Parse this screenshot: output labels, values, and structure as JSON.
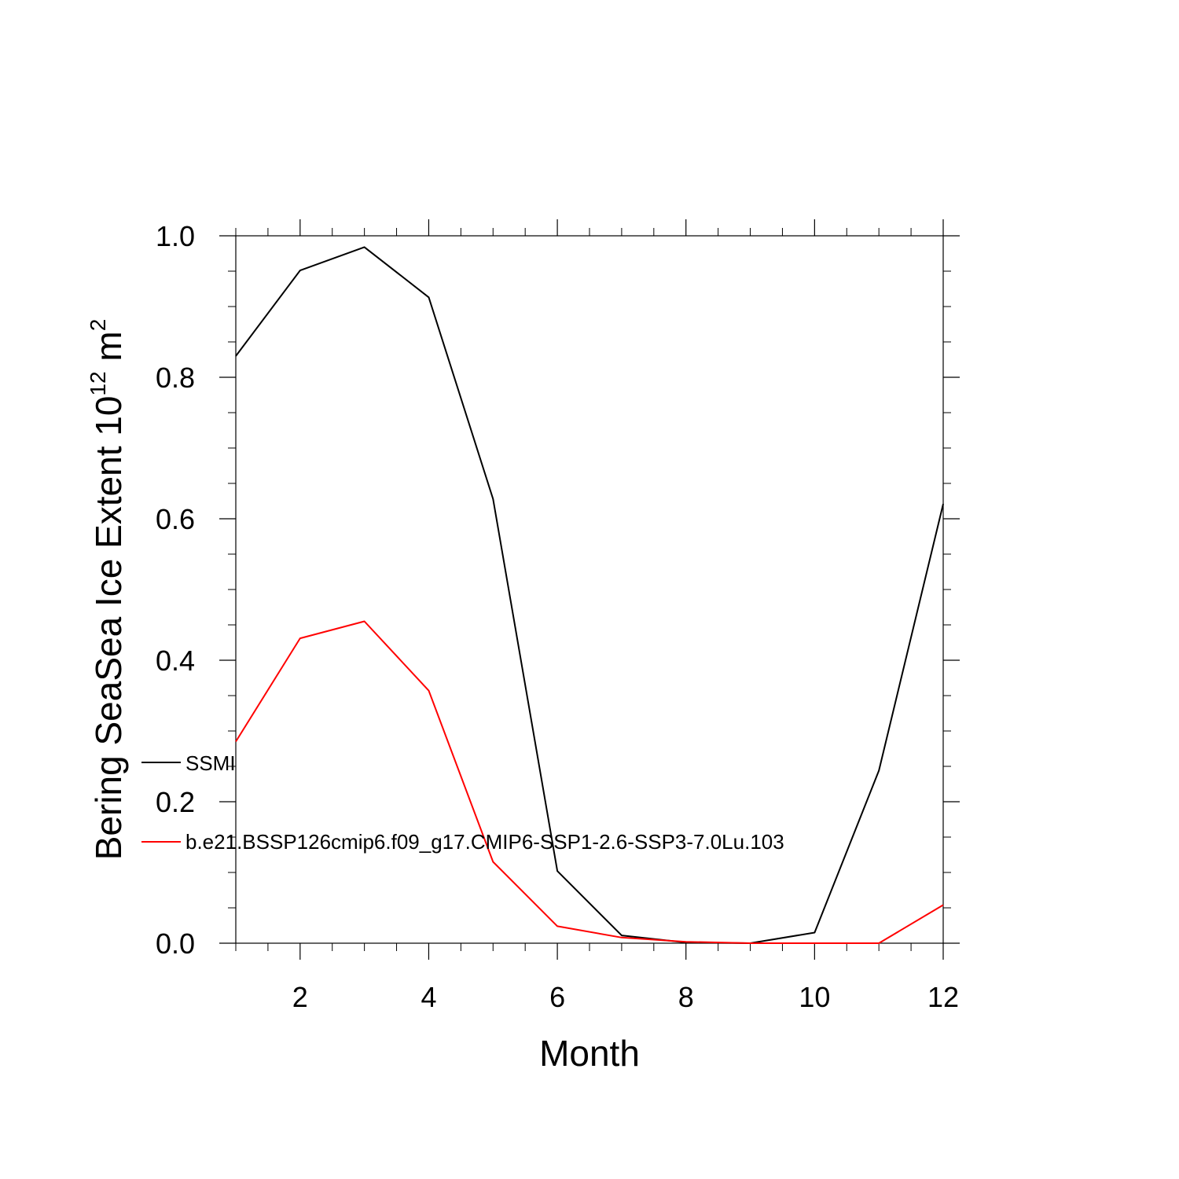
{
  "chart_data": {
    "type": "line",
    "title": "",
    "xlabel": "Month",
    "ylabel_main": "Bering SeaSea Ice Extent 10",
    "ylabel_exp": "12",
    "ylabel_unit": " m",
    "ylabel_unit_exp": "2",
    "xlim": [
      1,
      12
    ],
    "ylim": [
      0,
      1.0
    ],
    "x_ticks": [
      2,
      4,
      6,
      8,
      10,
      12
    ],
    "x_tick_labels": [
      "2",
      "4",
      "6",
      "8",
      "10",
      "12"
    ],
    "y_ticks": [
      0,
      0.2,
      0.4,
      0.6,
      0.8,
      1.0
    ],
    "y_tick_labels": [
      "0.0",
      "0.2",
      "0.4",
      "0.6",
      "0.8",
      "1.0"
    ],
    "grid": false,
    "legend_position": "left-middle",
    "x": [
      1,
      2,
      3,
      4,
      5,
      6,
      7,
      8,
      9,
      10,
      11,
      12
    ],
    "series": [
      {
        "name": "SSMI",
        "color": "#000000",
        "values": [
          0.83,
          0.951,
          0.984,
          0.913,
          0.628,
          0.102,
          0.011,
          0.001,
          0.0,
          0.015,
          0.244,
          0.621
        ]
      },
      {
        "name": "b.e21.BSSP126cmip6.f09_g17.CMIP6-SSP1-2.6-SSP3-7.0Lu.103",
        "color": "#ff0000",
        "values": [
          0.285,
          0.431,
          0.455,
          0.357,
          0.115,
          0.024,
          0.008,
          0.002,
          0.0,
          0.0,
          0.0,
          0.054
        ]
      }
    ]
  }
}
